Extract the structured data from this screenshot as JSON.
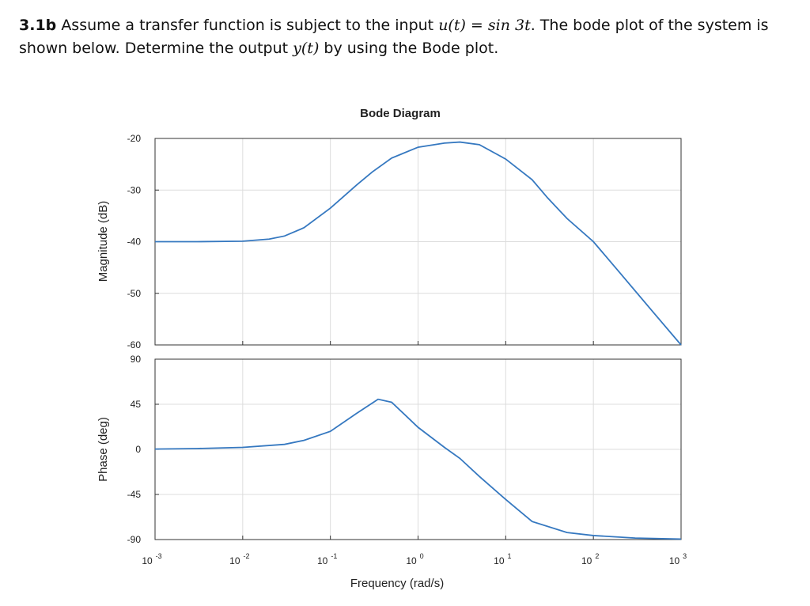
{
  "question": {
    "label": "3.1b",
    "text1": "Assume a transfer function is subject to the input",
    "math1": "u(t) = sin 3t",
    "text2": ". The bode plot of the system is shown below. Determine the output",
    "math2": "y(t)",
    "text3": "by using the Bode plot."
  },
  "chart_data": [
    {
      "type": "line",
      "title": "Bode Diagram",
      "ylabel": "Magnitude (dB)",
      "xscale": "log",
      "xlim": [
        0.001,
        1000
      ],
      "ylim": [
        -60,
        -20
      ],
      "yticks": [
        -20,
        -30,
        -40,
        -50,
        -60
      ],
      "grid": true,
      "color": "#3578c0",
      "x": [
        0.001,
        0.003,
        0.01,
        0.02,
        0.03,
        0.05,
        0.1,
        0.2,
        0.3,
        0.5,
        1,
        2,
        3,
        5,
        10,
        20,
        30,
        50,
        100,
        200,
        500,
        1000
      ],
      "values": [
        -40,
        -40,
        -39.9,
        -39.5,
        -38.9,
        -37.3,
        -33.5,
        -29,
        -26.5,
        -23.8,
        -21.7,
        -20.9,
        -20.7,
        -21.2,
        -24,
        -28,
        -31.5,
        -35.5,
        -40,
        -46,
        -54,
        -60
      ]
    },
    {
      "type": "line",
      "ylabel": "Phase (deg)",
      "xlabel": "Frequency  (rad/s)",
      "xscale": "log",
      "xlim": [
        0.001,
        1000
      ],
      "xticks": [
        {
          "value": 0.001,
          "label": "10",
          "exponent": "-3"
        },
        {
          "value": 0.01,
          "label": "10",
          "exponent": "-2"
        },
        {
          "value": 0.1,
          "label": "10",
          "exponent": "-1"
        },
        {
          "value": 1,
          "label": "10",
          "exponent": "0"
        },
        {
          "value": 10,
          "label": "10",
          "exponent": "1"
        },
        {
          "value": 100,
          "label": "10",
          "exponent": "2"
        },
        {
          "value": 1000,
          "label": "10",
          "exponent": "3"
        }
      ],
      "ylim": [
        -90,
        90
      ],
      "yticks": [
        90,
        45,
        0,
        -45,
        -90
      ],
      "grid": true,
      "color": "#3578c0",
      "x": [
        0.001,
        0.003,
        0.01,
        0.03,
        0.05,
        0.1,
        0.2,
        0.35,
        0.5,
        1,
        2,
        3,
        5,
        10,
        20,
        50,
        100,
        300,
        1000
      ],
      "values": [
        0.3,
        0.8,
        2,
        5,
        9,
        18,
        36,
        50,
        47,
        22,
        2,
        -9,
        -27,
        -50,
        -72,
        -83,
        -86,
        -88.5,
        -89.5
      ]
    }
  ]
}
